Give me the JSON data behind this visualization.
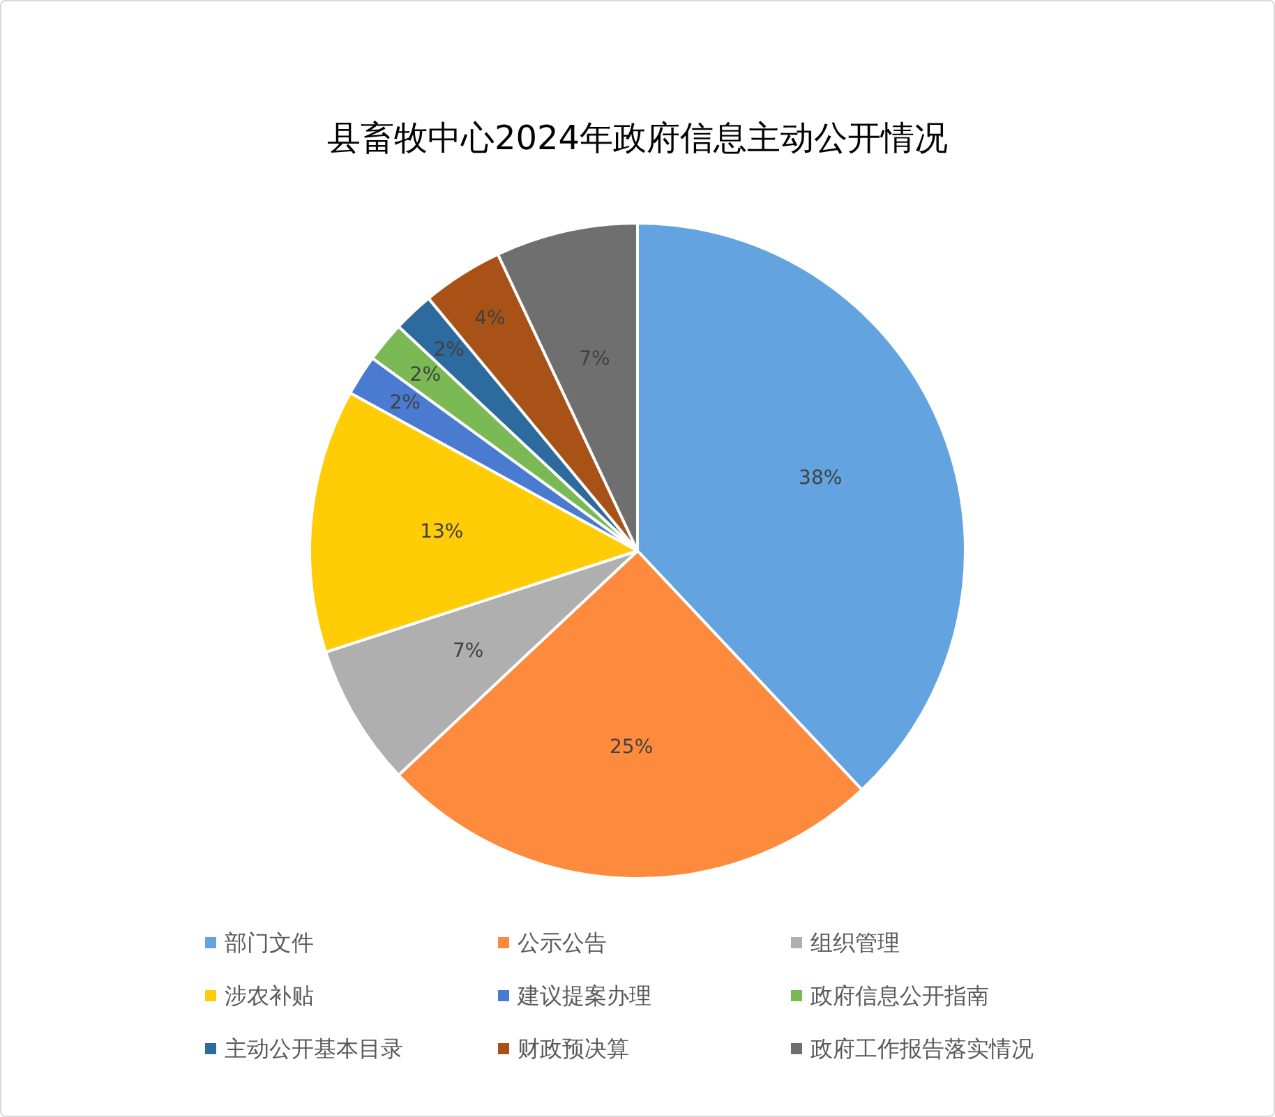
{
  "chart_data": {
    "type": "pie",
    "title": "县畜牧中心2024年政府信息主动公开情况",
    "categories": [
      "部门文件",
      "公示公告",
      "组织管理",
      "涉农补贴",
      "建议提案办理",
      "政府信息公开指南",
      "主动公开基本目录",
      "财政预决算",
      "政府工作报告落实情况"
    ],
    "values": [
      38,
      25,
      7,
      13,
      2,
      2,
      2,
      4,
      7
    ],
    "value_labels": [
      "38%",
      "25%",
      "7%",
      "13%",
      "2%",
      "2%",
      "2%",
      "4%",
      "7%"
    ],
    "colors": [
      "#62a3e0",
      "#fd8a3d",
      "#afafaf",
      "#ffcc05",
      "#4a7bd0",
      "#7ab953",
      "#2d6a9e",
      "#a85218",
      "#6f6f6f"
    ],
    "legend": "bottom"
  }
}
